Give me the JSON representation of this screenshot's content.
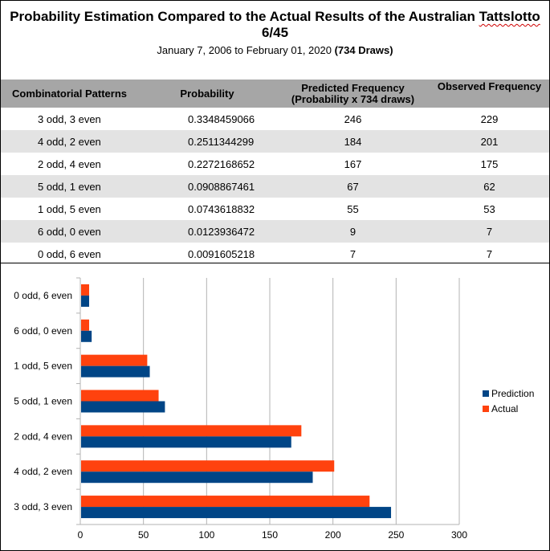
{
  "header": {
    "title_prefix": "Probability Estimation Compared to the Actual Results of the Australian ",
    "title_word": "Tattslotto",
    "title_suffix": " 6/45",
    "date_range": "January 7, 2006 to February 01, 2020 ",
    "draws": "(734 Draws)"
  },
  "table": {
    "headers": [
      "Combinatorial Patterns",
      "Probability",
      "Predicted Frequency",
      "(Probability x 734 draws)",
      "Observed Frequency"
    ],
    "rows": [
      {
        "pattern": "3 odd, 3 even",
        "probability": "0.3348459066",
        "predicted": "246",
        "observed": "229"
      },
      {
        "pattern": "4 odd, 2 even",
        "probability": "0.2511344299",
        "predicted": "184",
        "observed": "201"
      },
      {
        "pattern": "2 odd, 4 even",
        "probability": "0.2272168652",
        "predicted": "167",
        "observed": "175"
      },
      {
        "pattern": "5 odd, 1 even",
        "probability": "0.0908867461",
        "predicted": "67",
        "observed": "62"
      },
      {
        "pattern": "1 odd, 5 even",
        "probability": "0.0743618832",
        "predicted": "55",
        "observed": "53"
      },
      {
        "pattern": "6 odd, 0 even",
        "probability": "0.0123936472",
        "predicted": "9",
        "observed": "7"
      },
      {
        "pattern": "0 odd, 6 even",
        "probability": "0.0091605218",
        "predicted": "7",
        "observed": "7"
      }
    ]
  },
  "chart_data": {
    "type": "bar",
    "orientation": "horizontal",
    "categories": [
      "3 odd, 3 even",
      "4 odd, 2 even",
      "2 odd, 4 even",
      "5 odd, 1 even",
      "1 odd, 5 even",
      "6 odd, 0 even",
      "0 odd, 6 even"
    ],
    "series": [
      {
        "name": "Prediction",
        "values": [
          246,
          184,
          167,
          67,
          55,
          9,
          7
        ],
        "color": "#004586"
      },
      {
        "name": "Actual",
        "values": [
          229,
          201,
          175,
          62,
          53,
          7,
          7
        ],
        "color": "#ff420e"
      }
    ],
    "xlim": [
      0,
      300
    ],
    "xticks": [
      "0",
      "50",
      "100",
      "150",
      "200",
      "250",
      "300"
    ],
    "grid": true,
    "legend": "right"
  }
}
